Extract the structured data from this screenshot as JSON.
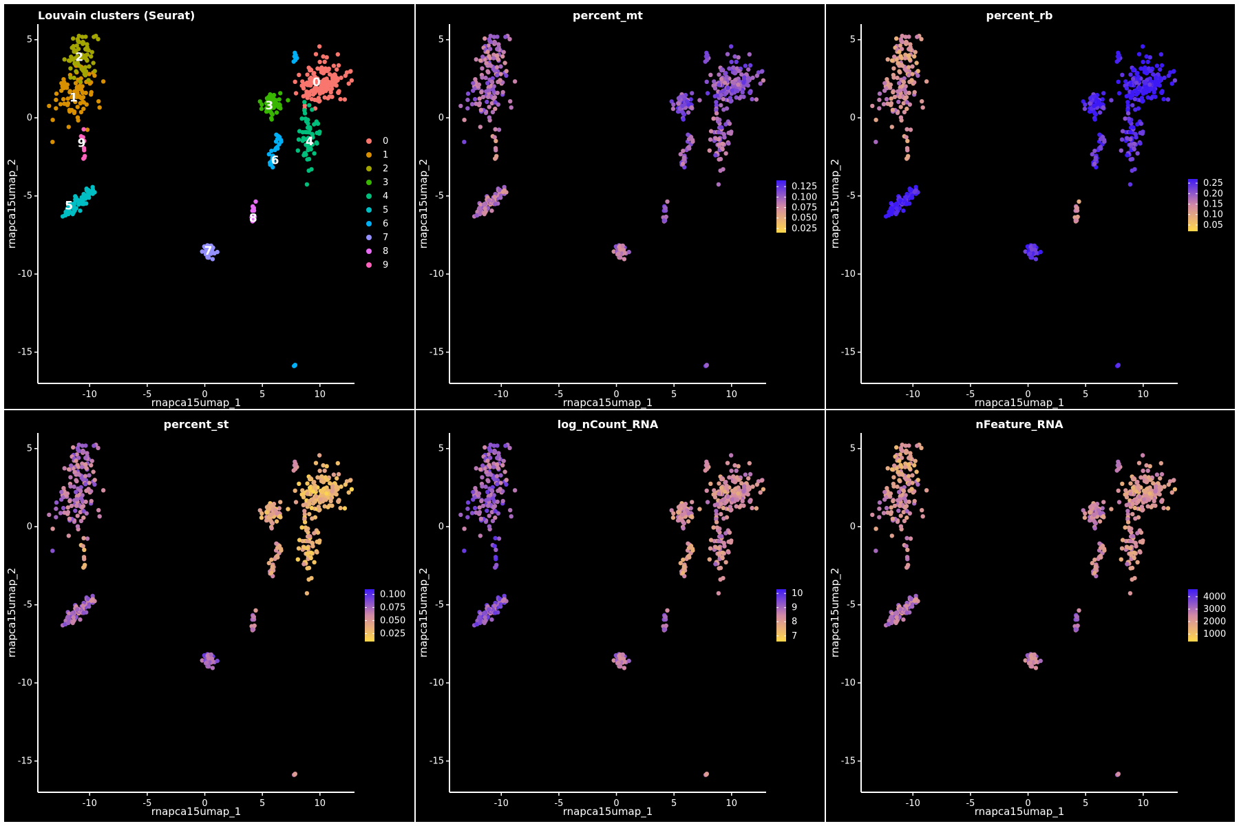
{
  "colors": {
    "background": "#000000",
    "foreground": "#ffffff",
    "panel_border": "#2a2a2a",
    "gradient_low": "#ffd84a",
    "gradient_mid": "#d38aa5",
    "gradient_high": "#3d1af5",
    "cluster_palette": [
      "#f8766d",
      "#d89000",
      "#a3a500",
      "#39b600",
      "#00bf7d",
      "#00bfc4",
      "#00b0f6",
      "#9590ff",
      "#e76bf3",
      "#ff62bc"
    ]
  },
  "chart_data": [
    {
      "type": "scatter",
      "title": "Louvain clusters (Seurat)",
      "xlabel": "rnapca15umap_1",
      "ylabel": "rnapca15umap_2",
      "xlim": [
        -14.5,
        13.0
      ],
      "ylim": [
        -17.0,
        6.0
      ],
      "xticks": [
        -10,
        -5,
        0,
        5,
        10
      ],
      "yticks": [
        -15,
        -10,
        -5,
        0,
        5
      ],
      "legend": {
        "kind": "categorical",
        "placement": "right",
        "labels": [
          "0",
          "1",
          "2",
          "3",
          "4",
          "5",
          "6",
          "7",
          "8",
          "9"
        ]
      },
      "cluster_labels": [
        {
          "text": "0",
          "x": 9.7,
          "y": 2.3
        },
        {
          "text": "1",
          "x": -11.4,
          "y": 1.3
        },
        {
          "text": "2",
          "x": -10.9,
          "y": 3.9
        },
        {
          "text": "3",
          "x": 5.6,
          "y": 0.8
        },
        {
          "text": "4",
          "x": 9.1,
          "y": -1.5
        },
        {
          "text": "5",
          "x": -11.8,
          "y": -5.6
        },
        {
          "text": "6",
          "x": 6.1,
          "y": -2.7
        },
        {
          "text": "7",
          "x": 0.3,
          "y": -8.5
        },
        {
          "text": "8",
          "x": 4.2,
          "y": -6.4
        },
        {
          "text": "9",
          "x": -10.7,
          "y": -1.6
        }
      ]
    },
    {
      "type": "scatter",
      "title": "percent_mt",
      "xlabel": "rnapca15umap_1",
      "ylabel": "rnapca15umap_2",
      "xlim": [
        -14.5,
        13.0
      ],
      "ylim": [
        -17.0,
        6.0
      ],
      "xticks": [
        -10,
        -5,
        0,
        5,
        10
      ],
      "yticks": [
        -15,
        -10,
        -5,
        0,
        5
      ],
      "legend": {
        "kind": "gradient",
        "placement": "right",
        "range": [
          0.015,
          0.14
        ],
        "ticks": [
          "0.125",
          "0.100",
          "0.075",
          "0.050",
          "0.025"
        ],
        "tick_values": [
          0.125,
          0.1,
          0.075,
          0.05,
          0.025
        ]
      }
    },
    {
      "type": "scatter",
      "title": "percent_rb",
      "xlabel": "rnapca15umap_1",
      "ylabel": "rnapca15umap_2",
      "xlim": [
        -14.5,
        13.0
      ],
      "ylim": [
        -17.0,
        6.0
      ],
      "xticks": [
        -10,
        -5,
        0,
        5,
        10
      ],
      "yticks": [
        -15,
        -10,
        -5,
        0,
        5
      ],
      "legend": {
        "kind": "gradient",
        "placement": "right",
        "range": [
          0.02,
          0.27
        ],
        "ticks": [
          "0.25",
          "0.20",
          "0.15",
          "0.10",
          "0.05"
        ],
        "tick_values": [
          0.25,
          0.2,
          0.15,
          0.1,
          0.05
        ]
      }
    },
    {
      "type": "scatter",
      "title": "percent_st",
      "xlabel": "rnapca15umap_1",
      "ylabel": "rnapca15umap_2",
      "xlim": [
        -14.5,
        13.0
      ],
      "ylim": [
        -17.0,
        6.0
      ],
      "xticks": [
        -10,
        -5,
        0,
        5,
        10
      ],
      "yticks": [
        -15,
        -10,
        -5,
        0,
        5
      ],
      "legend": {
        "kind": "gradient",
        "placement": "right",
        "range": [
          0.01,
          0.11
        ],
        "ticks": [
          "0.100",
          "0.075",
          "0.050",
          "0.025"
        ],
        "tick_values": [
          0.1,
          0.075,
          0.05,
          0.025
        ]
      }
    },
    {
      "type": "scatter",
      "title": "log_nCount_RNA",
      "xlabel": "rnapca15umap_1",
      "ylabel": "rnapca15umap_2",
      "xlim": [
        -14.5,
        13.0
      ],
      "ylim": [
        -17.0,
        6.0
      ],
      "xticks": [
        -10,
        -5,
        0,
        5,
        10
      ],
      "yticks": [
        -15,
        -10,
        -5,
        0,
        5
      ],
      "legend": {
        "kind": "gradient",
        "placement": "right",
        "range": [
          6.6,
          10.3
        ],
        "ticks": [
          "10",
          "9",
          "8",
          "7"
        ],
        "tick_values": [
          10,
          9,
          8,
          7
        ]
      }
    },
    {
      "type": "scatter",
      "title": "nFeature_RNA",
      "xlabel": "rnapca15umap_1",
      "ylabel": "rnapca15umap_2",
      "xlim": [
        -14.5,
        13.0
      ],
      "ylim": [
        -17.0,
        6.0
      ],
      "xticks": [
        -10,
        -5,
        0,
        5,
        10
      ],
      "yticks": [
        -15,
        -10,
        -5,
        0,
        5
      ],
      "legend": {
        "kind": "gradient",
        "placement": "right",
        "range": [
          400,
          4600
        ],
        "ticks": [
          "4000",
          "3000",
          "2000",
          "1000"
        ],
        "tick_values": [
          4000,
          3000,
          2000,
          1000
        ]
      }
    }
  ],
  "clusters": [
    {
      "id": 0,
      "shape": "ellipse",
      "center": [
        10.2,
        2.2
      ],
      "spread": [
        1.4,
        1.0
      ],
      "angle": 15,
      "n": 150
    },
    {
      "id": 1,
      "shape": "ellipse",
      "center": [
        -11.2,
        1.6
      ],
      "spread": [
        1.1,
        1.3
      ],
      "angle": -50,
      "n": 85
    },
    {
      "id": 2,
      "shape": "ellipse",
      "center": [
        -10.8,
        3.9
      ],
      "spread": [
        0.9,
        0.9
      ],
      "angle": 60,
      "n": 65
    },
    {
      "id": 3,
      "shape": "ellipse",
      "center": [
        5.7,
        0.8
      ],
      "spread": [
        0.7,
        0.45
      ],
      "angle": 0,
      "n": 55
    },
    {
      "id": 4,
      "shape": "ellipse",
      "center": [
        9.0,
        -1.2
      ],
      "spread": [
        0.5,
        1.3
      ],
      "angle": 0,
      "n": 60
    },
    {
      "id": 5,
      "shape": "line",
      "from": [
        -12.3,
        -6.2
      ],
      "to": [
        -9.8,
        -4.7
      ],
      "width": 0.2,
      "n": 65
    },
    {
      "id": 6,
      "shape": "line",
      "from": [
        5.6,
        -3.3
      ],
      "to": [
        6.4,
        -1.1
      ],
      "width": 0.15,
      "n": 25
    },
    {
      "id": 6,
      "shape": "ellipse",
      "center": [
        7.8,
        3.9
      ],
      "spread": [
        0.15,
        0.2
      ],
      "angle": 0,
      "n": 8
    },
    {
      "id": 6,
      "shape": "ellipse",
      "center": [
        7.8,
        -15.8
      ],
      "spread": [
        0.08,
        0.06
      ],
      "angle": 0,
      "n": 3
    },
    {
      "id": 7,
      "shape": "ellipse",
      "center": [
        0.4,
        -8.5
      ],
      "spread": [
        0.35,
        0.28
      ],
      "angle": 0,
      "n": 28
    },
    {
      "id": 8,
      "shape": "line",
      "from": [
        4.2,
        -6.7
      ],
      "to": [
        4.3,
        -5.6
      ],
      "width": 0.12,
      "n": 14
    },
    {
      "id": 9,
      "shape": "line",
      "from": [
        -10.5,
        -2.7
      ],
      "to": [
        -10.6,
        -0.8
      ],
      "width": 0.1,
      "n": 9
    }
  ],
  "feature_levels": [
    [
      0.7,
      0.65,
      0.6,
      0.75,
      0.65,
      0.55,
      0.7,
      0.6,
      0.65,
      0.45
    ],
    [
      1.0,
      0.5,
      0.4,
      0.95,
      0.9,
      1.0,
      0.9,
      0.95,
      0.4,
      0.4
    ],
    [
      0.2,
      0.6,
      0.6,
      0.3,
      0.25,
      0.6,
      0.4,
      0.7,
      0.5,
      0.3
    ],
    [
      0.45,
      0.7,
      0.65,
      0.45,
      0.5,
      0.7,
      0.4,
      0.6,
      0.6,
      0.8
    ],
    [
      0.4,
      0.5,
      0.35,
      0.5,
      0.45,
      0.55,
      0.5,
      0.55,
      0.6,
      0.5
    ]
  ]
}
